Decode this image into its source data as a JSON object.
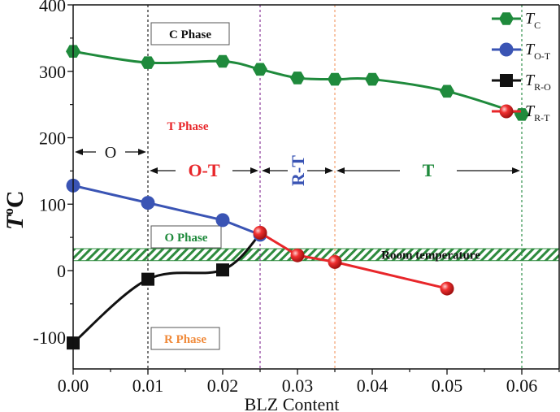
{
  "chart_data": {
    "type": "line",
    "title": "",
    "xlabel": "BLZ Content",
    "ylabel_main": "T",
    "ylabel_sup": "o",
    "ylabel_unit": "C",
    "xlim": [
      0,
      0.065
    ],
    "ylim": [
      -150,
      400
    ],
    "xticks": [
      "0.00",
      "0.01",
      "0.02",
      "0.03",
      "0.04",
      "0.05",
      "0.06"
    ],
    "xtick_values": [
      0,
      0.01,
      0.02,
      0.03,
      0.04,
      0.05,
      0.06
    ],
    "yticks": [
      "-100",
      "0",
      "100",
      "200",
      "300",
      "400"
    ],
    "ytick_values": [
      -100,
      0,
      100,
      200,
      300,
      400
    ],
    "series": [
      {
        "name": "T_C",
        "label_main": "T",
        "label_sub": "C",
        "color": "#1f8a3c",
        "marker": "hexagon",
        "smooth": true,
        "x": [
          0,
          0.01,
          0.02,
          0.025,
          0.03,
          0.035,
          0.04,
          0.05,
          0.06
        ],
        "y": [
          330,
          313,
          315,
          303,
          290,
          288,
          288,
          270,
          235
        ]
      },
      {
        "name": "T_O-T",
        "label_main": "T",
        "label_sub": "O-T",
        "color": "#3a54b4",
        "marker": "circle",
        "smooth": false,
        "x": [
          0,
          0.01,
          0.02,
          0.025
        ],
        "y": [
          128,
          102,
          76,
          54
        ]
      },
      {
        "name": "T_R-O",
        "label_main": "T",
        "label_sub": "R-O",
        "color": "#111111",
        "marker": "square",
        "smooth": true,
        "x": [
          0,
          0.01,
          0.02,
          0.025
        ],
        "y": [
          -109,
          -13,
          1,
          55
        ]
      },
      {
        "name": "T_R-T",
        "label_main": "T",
        "label_sub": "R-T",
        "color": "#e8262a",
        "marker": "sphere",
        "smooth": false,
        "x": [
          0.025,
          0.03,
          0.035,
          0.05
        ],
        "y": [
          57,
          23,
          13,
          -27
        ]
      }
    ],
    "room_temperature_band": [
      15,
      33
    ],
    "room_temperature_label": "Room temperature",
    "boundaries": [
      {
        "x": 0.01,
        "color": "#222222"
      },
      {
        "x": 0.025,
        "color": "#8a3a9a"
      },
      {
        "x": 0.035,
        "color": "#f2a070"
      },
      {
        "x": 0.06,
        "color": "#2f8f4a"
      }
    ],
    "phase_labels": [
      {
        "text": "C Phase",
        "color": "#111111",
        "boxed": true
      },
      {
        "text": "T Phase",
        "color": "#e8262a",
        "boxed": false
      },
      {
        "text": "O Phase",
        "color": "#1f8a3c",
        "boxed": true
      },
      {
        "text": "R Phase",
        "color": "#f08a3a",
        "boxed": true
      }
    ],
    "regions": [
      {
        "text": "O",
        "color": "#111111",
        "from": 0,
        "to": 0.01
      },
      {
        "text": "O-T",
        "color": "#e8262a",
        "from": 0.01,
        "to": 0.025
      },
      {
        "text": "R-T",
        "color": "#3a54b4",
        "from": 0.025,
        "to": 0.035
      },
      {
        "text": "T",
        "color": "#1f8a3c",
        "from": 0.035,
        "to": 0.06
      }
    ],
    "legend_position": "top-right",
    "grid": false
  }
}
